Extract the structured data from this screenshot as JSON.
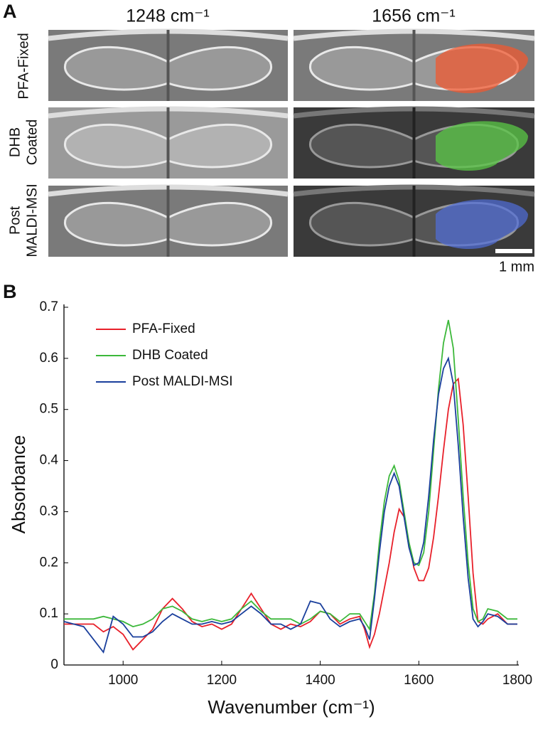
{
  "panel_a": {
    "label": "A",
    "columns": [
      "1248 cm⁻¹",
      "1656 cm⁻¹"
    ],
    "rows": [
      [
        "PFA-Fixed"
      ],
      [
        "DHB",
        "Coated"
      ],
      [
        "Post",
        "MALDI-MSI"
      ]
    ],
    "scale_bar": "1 mm"
  },
  "panel_b": {
    "label": "B"
  },
  "chart_data": {
    "type": "line",
    "xlabel": "Wavenumber (cm⁻¹)",
    "ylabel": "Absorbance",
    "xlim": [
      880,
      1800
    ],
    "ylim": [
      0,
      0.7
    ],
    "xticks": [
      1000,
      1200,
      1400,
      1600,
      1800
    ],
    "yticks": [
      0,
      0.1,
      0.2,
      0.3,
      0.4,
      0.5,
      0.6,
      0.7
    ],
    "legend": "upper left",
    "x": [
      880,
      900,
      920,
      940,
      960,
      980,
      1000,
      1020,
      1040,
      1060,
      1080,
      1100,
      1120,
      1140,
      1160,
      1180,
      1200,
      1220,
      1240,
      1260,
      1280,
      1300,
      1320,
      1340,
      1360,
      1380,
      1400,
      1420,
      1440,
      1460,
      1480,
      1490,
      1500,
      1510,
      1520,
      1530,
      1540,
      1550,
      1560,
      1570,
      1580,
      1590,
      1600,
      1610,
      1620,
      1630,
      1640,
      1650,
      1660,
      1670,
      1680,
      1690,
      1700,
      1710,
      1720,
      1730,
      1740,
      1760,
      1780,
      1800
    ],
    "series": [
      {
        "name": "PFA-Fixed",
        "color": "#e8202a",
        "values": [
          0.08,
          0.08,
          0.08,
          0.08,
          0.065,
          0.075,
          0.06,
          0.03,
          0.05,
          0.07,
          0.11,
          0.13,
          0.11,
          0.085,
          0.075,
          0.08,
          0.07,
          0.08,
          0.11,
          0.14,
          0.11,
          0.08,
          0.07,
          0.08,
          0.075,
          0.085,
          0.105,
          0.1,
          0.08,
          0.09,
          0.095,
          0.07,
          0.035,
          0.06,
          0.1,
          0.15,
          0.2,
          0.26,
          0.305,
          0.29,
          0.24,
          0.19,
          0.165,
          0.165,
          0.19,
          0.25,
          0.33,
          0.42,
          0.5,
          0.55,
          0.56,
          0.47,
          0.33,
          0.18,
          0.085,
          0.08,
          0.09,
          0.1,
          0.08,
          0.08
        ]
      },
      {
        "name": "DHB Coated",
        "color": "#3cb83a",
        "values": [
          0.09,
          0.09,
          0.09,
          0.09,
          0.095,
          0.09,
          0.085,
          0.075,
          0.08,
          0.09,
          0.11,
          0.115,
          0.105,
          0.09,
          0.085,
          0.09,
          0.085,
          0.09,
          0.11,
          0.125,
          0.105,
          0.09,
          0.09,
          0.09,
          0.08,
          0.09,
          0.105,
          0.1,
          0.085,
          0.1,
          0.1,
          0.085,
          0.07,
          0.14,
          0.24,
          0.32,
          0.37,
          0.39,
          0.36,
          0.3,
          0.24,
          0.2,
          0.195,
          0.22,
          0.3,
          0.42,
          0.54,
          0.63,
          0.675,
          0.62,
          0.48,
          0.33,
          0.2,
          0.11,
          0.085,
          0.09,
          0.11,
          0.105,
          0.09,
          0.09
        ]
      },
      {
        "name": "Post MALDI-MSI",
        "color": "#1a3f9c",
        "values": [
          0.085,
          0.08,
          0.075,
          0.05,
          0.025,
          0.095,
          0.08,
          0.055,
          0.055,
          0.065,
          0.085,
          0.1,
          0.09,
          0.08,
          0.08,
          0.085,
          0.08,
          0.085,
          0.1,
          0.115,
          0.1,
          0.08,
          0.08,
          0.07,
          0.08,
          0.125,
          0.12,
          0.09,
          0.075,
          0.085,
          0.09,
          0.075,
          0.05,
          0.13,
          0.22,
          0.3,
          0.35,
          0.375,
          0.35,
          0.29,
          0.23,
          0.195,
          0.2,
          0.24,
          0.33,
          0.44,
          0.53,
          0.58,
          0.6,
          0.55,
          0.43,
          0.29,
          0.17,
          0.09,
          0.075,
          0.085,
          0.1,
          0.095,
          0.08,
          0.08
        ]
      }
    ]
  }
}
